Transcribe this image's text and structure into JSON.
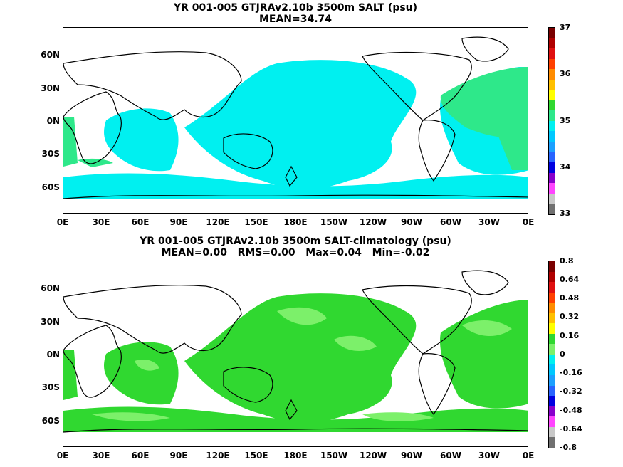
{
  "panels": [
    {
      "title_line1": "YR 001-005 GTJRAv2.10b 3500m SALT (psu)",
      "title_line2": "MEAN=34.74",
      "fill_color": "#00f0f0",
      "highlight_color": "#2ee88a",
      "colorbar_labels": [
        "37",
        "36",
        "35",
        "34",
        "33"
      ],
      "colorbar_colors": [
        "#7a0000",
        "#b00000",
        "#e01010",
        "#ff4000",
        "#ff8c00",
        "#ffc000",
        "#ffff00",
        "#30d830",
        "#2ee88a",
        "#00f0f0",
        "#00c8ff",
        "#1ca0ff",
        "#2864ff",
        "#0000e0",
        "#8800cc",
        "#ff44ff",
        "#c8c8c8",
        "#707070"
      ]
    },
    {
      "title_line1": "YR 001-005 GTJRAv2.10b 3500m SALT-climatology (psu)",
      "title_line2": "MEAN=0.00   RMS=0.00   Max=0.04   Min=-0.02",
      "fill_color": "#30d830",
      "highlight_color": "#7cf06a",
      "colorbar_labels": [
        "0.8",
        "0.64",
        "0.48",
        "0.32",
        "0.16",
        "0",
        "-0.16",
        "-0.32",
        "-0.48",
        "-0.64",
        "-0.8"
      ],
      "colorbar_colors": [
        "#7a0000",
        "#b00000",
        "#e01010",
        "#ff4000",
        "#ff8c00",
        "#ffc000",
        "#ffff00",
        "#30d830",
        "#7cf06a",
        "#00f0f0",
        "#00c8ff",
        "#1ca0ff",
        "#2864ff",
        "#0000e0",
        "#8800cc",
        "#ff44ff",
        "#c8c8c8",
        "#707070"
      ]
    }
  ],
  "lat_labels": [
    "60N",
    "30N",
    "0N",
    "30S",
    "60S"
  ],
  "lon_labels": [
    "0E",
    "30E",
    "60E",
    "90E",
    "120E",
    "150E",
    "180E",
    "150W",
    "120W",
    "90W",
    "60W",
    "30W",
    "0E"
  ]
}
